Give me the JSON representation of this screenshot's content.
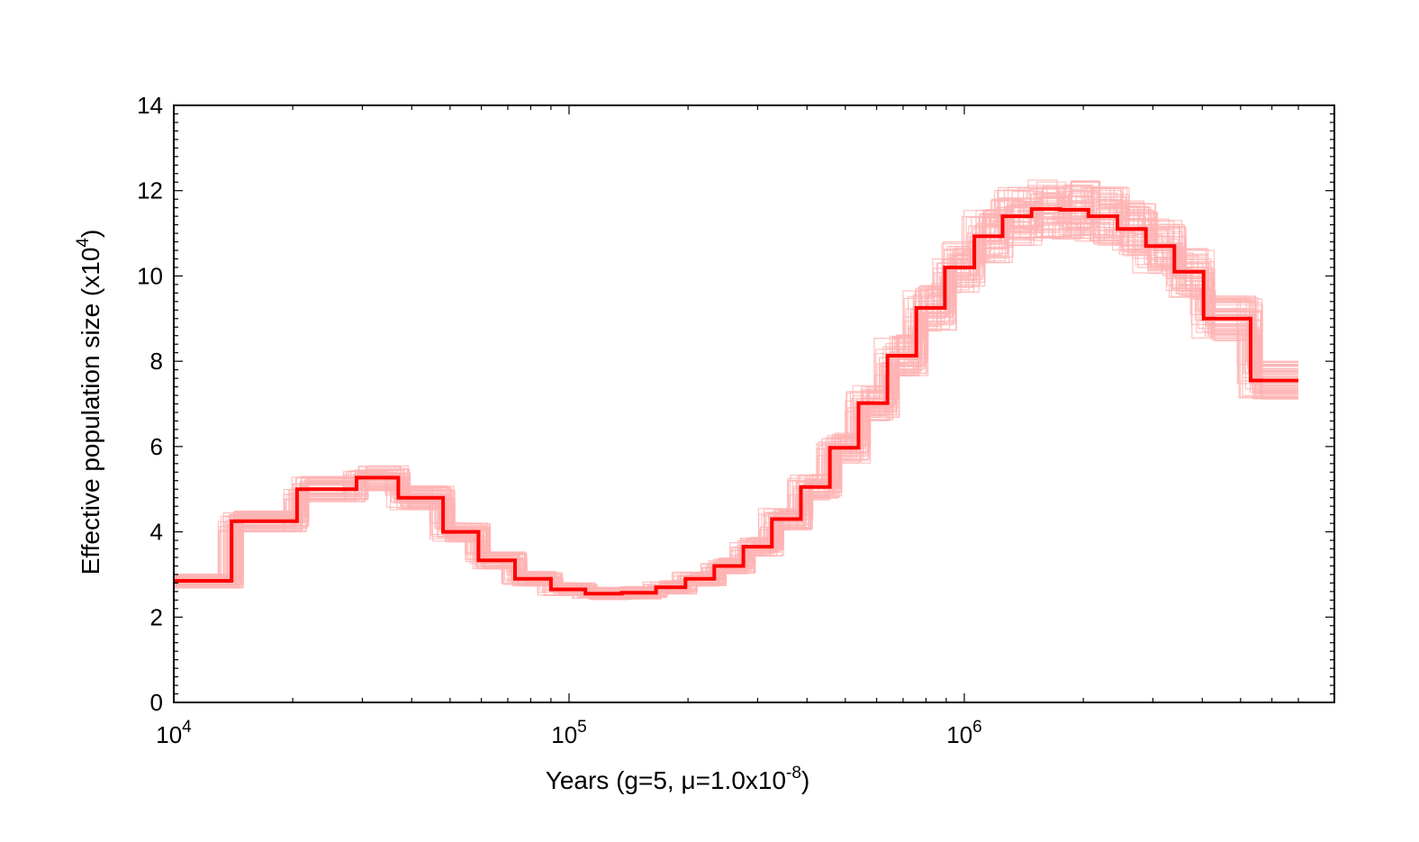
{
  "chart_data": {
    "type": "line",
    "step": true,
    "x_scale": "log",
    "xlim": [
      10000,
      7000000
    ],
    "ylim": [
      0,
      14
    ],
    "grid": false,
    "legend": "none",
    "xlabel": {
      "prefix": "Years (g=5, ",
      "symbol": "μ",
      "middle": "=1.0x10",
      "exponent": "-8",
      "suffix": ")"
    },
    "ylabel": {
      "prefix": "Effective population size (x10",
      "exponent": "4",
      "suffix": ")"
    },
    "y_ticks": [
      "0",
      "2",
      "4",
      "6",
      "8",
      "10",
      "12",
      "14"
    ],
    "x_ticks": [
      {
        "value": 10000,
        "base": "10",
        "exponent": "4"
      },
      {
        "value": 100000,
        "base": "10",
        "exponent": "5"
      },
      {
        "value": 1000000,
        "base": "10",
        "exponent": "6"
      }
    ],
    "colors": {
      "main": "#ff0000",
      "bootstrap": "#ffb3b3",
      "axis": "#000000"
    },
    "series": [
      {
        "points": [
          [
            10000,
            2.85
          ],
          [
            14000,
            2.85
          ],
          [
            14000,
            4.25
          ],
          [
            20500,
            4.25
          ],
          [
            20500,
            5.0
          ],
          [
            29000,
            5.0
          ],
          [
            29000,
            5.27
          ],
          [
            37000,
            5.27
          ],
          [
            37000,
            4.8
          ],
          [
            48000,
            4.8
          ],
          [
            48000,
            4.0
          ],
          [
            59000,
            4.0
          ],
          [
            59000,
            3.33
          ],
          [
            73000,
            3.33
          ],
          [
            73000,
            2.9
          ],
          [
            90000,
            2.9
          ],
          [
            90000,
            2.65
          ],
          [
            110000,
            2.65
          ],
          [
            110000,
            2.55
          ],
          [
            136000,
            2.55
          ],
          [
            136000,
            2.57
          ],
          [
            166000,
            2.57
          ],
          [
            166000,
            2.7
          ],
          [
            197000,
            2.7
          ],
          [
            197000,
            2.9
          ],
          [
            233000,
            2.9
          ],
          [
            233000,
            3.2
          ],
          [
            276000,
            3.2
          ],
          [
            276000,
            3.65
          ],
          [
            326000,
            3.65
          ],
          [
            326000,
            4.3
          ],
          [
            386000,
            4.3
          ],
          [
            386000,
            5.05
          ],
          [
            457000,
            5.05
          ],
          [
            457000,
            5.97
          ],
          [
            540000,
            5.97
          ],
          [
            540000,
            7.02
          ],
          [
            639000,
            7.02
          ],
          [
            639000,
            8.13
          ],
          [
            756000,
            8.13
          ],
          [
            756000,
            9.25
          ],
          [
            893000,
            9.25
          ],
          [
            893000,
            10.2
          ],
          [
            1060000,
            10.2
          ],
          [
            1060000,
            10.93
          ],
          [
            1250000,
            10.93
          ],
          [
            1250000,
            11.4
          ],
          [
            1480000,
            11.4
          ],
          [
            1480000,
            11.57
          ],
          [
            1750000,
            11.57
          ],
          [
            1750000,
            11.55
          ],
          [
            2060000,
            11.55
          ],
          [
            2060000,
            11.4
          ],
          [
            2440000,
            11.4
          ],
          [
            2440000,
            11.1
          ],
          [
            2880000,
            11.1
          ],
          [
            2880000,
            10.7
          ],
          [
            3400000,
            10.7
          ],
          [
            3400000,
            10.1
          ],
          [
            4030000,
            10.1
          ],
          [
            4030000,
            9.0
          ],
          [
            5300000,
            9.0
          ],
          [
            5300000,
            7.55
          ],
          [
            7000000,
            7.55
          ]
        ]
      }
    ]
  }
}
